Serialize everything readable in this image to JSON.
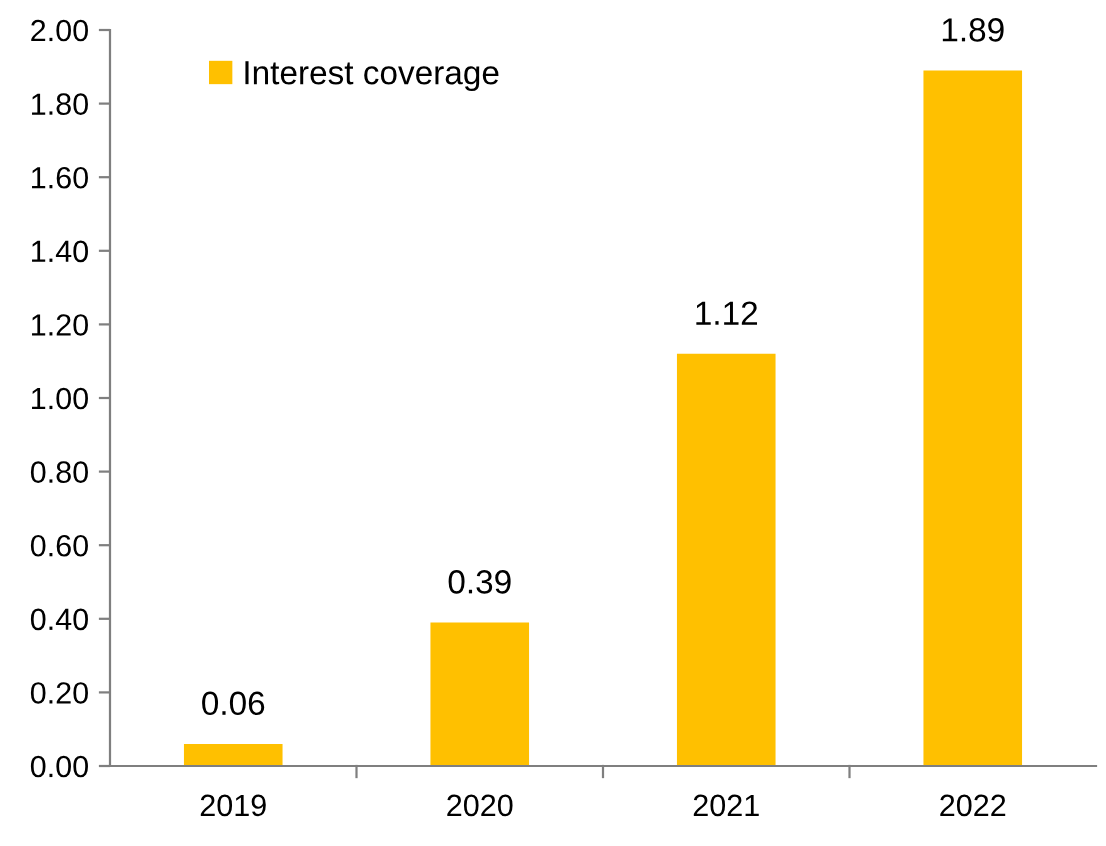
{
  "chart_data": {
    "type": "bar",
    "categories": [
      "2019",
      "2020",
      "2021",
      "2022"
    ],
    "series": [
      {
        "name": "Interest coverage",
        "color": "#ffc000",
        "values": [
          0.06,
          0.39,
          1.12,
          1.89
        ]
      }
    ],
    "ylim": [
      0,
      2.0
    ],
    "yticks": [
      {
        "value": 0,
        "label": "0.00"
      },
      {
        "value": 0.2,
        "label": "0.20"
      },
      {
        "value": 0.4,
        "label": "0.40"
      },
      {
        "value": 0.6,
        "label": "0.60"
      },
      {
        "value": 0.8,
        "label": "0.80"
      },
      {
        "value": 1.0,
        "label": "1.00"
      },
      {
        "value": 1.2,
        "label": "1.20"
      },
      {
        "value": 1.4,
        "label": "1.40"
      },
      {
        "value": 1.6,
        "label": "1.60"
      },
      {
        "value": 1.8,
        "label": "1.80"
      },
      {
        "value": 2.0,
        "label": "2.00"
      }
    ],
    "data_labels": true,
    "grid": false,
    "legend": "top left"
  }
}
